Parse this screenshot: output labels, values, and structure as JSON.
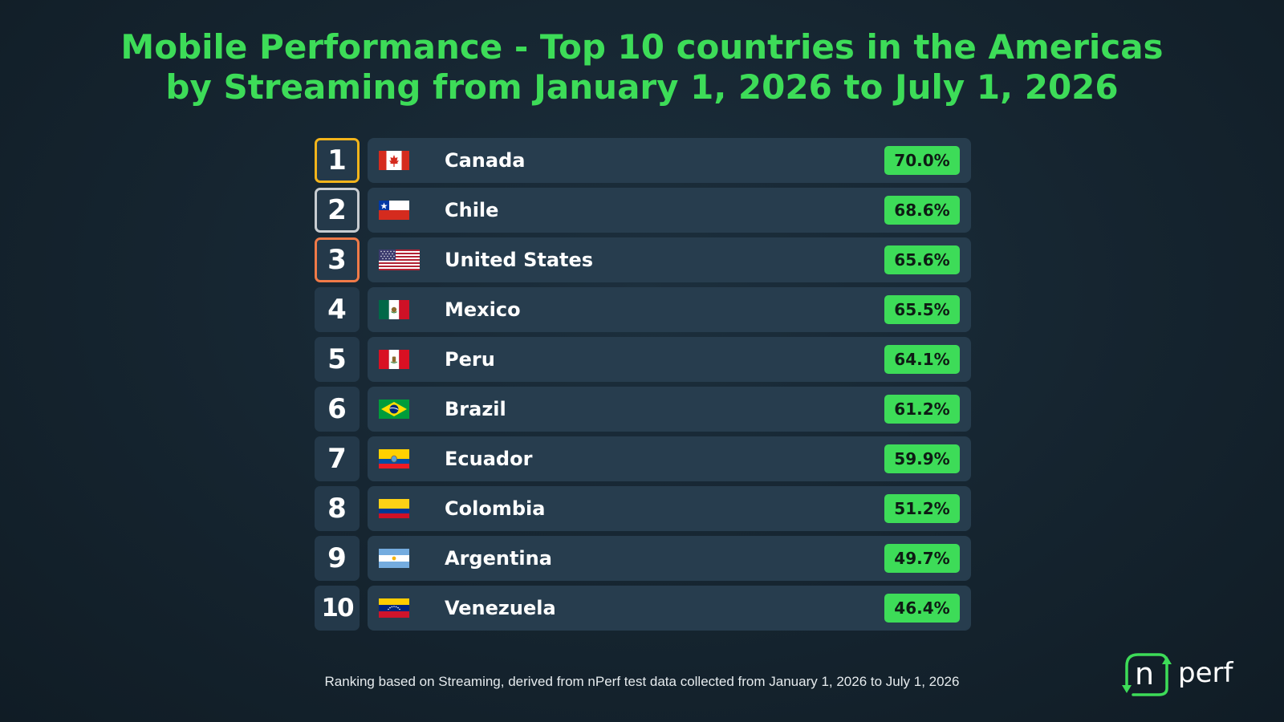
{
  "title": {
    "line1": "Mobile Performance - Top 10 countries in the Americas",
    "line2": "by Streaming from January 1, 2026 to July 1, 2026"
  },
  "colors": {
    "accent": "#3ddc58",
    "gold": "#f3b41b",
    "silver": "#c7ccd1",
    "bronze": "#f07a48",
    "row_background": "#273d4e"
  },
  "rows": [
    {
      "rank": "1",
      "country": "Canada",
      "value": "70.0%",
      "flag": "canada-flag-icon"
    },
    {
      "rank": "2",
      "country": "Chile",
      "value": "68.6%",
      "flag": "chile-flag-icon"
    },
    {
      "rank": "3",
      "country": "United States",
      "value": "65.6%",
      "flag": "usa-flag-icon"
    },
    {
      "rank": "4",
      "country": "Mexico",
      "value": "65.5%",
      "flag": "mexico-flag-icon"
    },
    {
      "rank": "5",
      "country": "Peru",
      "value": "64.1%",
      "flag": "peru-flag-icon"
    },
    {
      "rank": "6",
      "country": "Brazil",
      "value": "61.2%",
      "flag": "brazil-flag-icon"
    },
    {
      "rank": "7",
      "country": "Ecuador",
      "value": "59.9%",
      "flag": "ecuador-flag-icon"
    },
    {
      "rank": "8",
      "country": "Colombia",
      "value": "51.2%",
      "flag": "colombia-flag-icon"
    },
    {
      "rank": "9",
      "country": "Argentina",
      "value": "49.7%",
      "flag": "argentina-flag-icon"
    },
    {
      "rank": "10",
      "country": "Venezuela",
      "value": "46.4%",
      "flag": "venezuela-flag-icon"
    }
  ],
  "footer": "Ranking based on Streaming, derived from nPerf test data collected from January 1, 2026 to July 1, 2026",
  "logo": {
    "text_n": "n",
    "text_perf": "perf"
  }
}
